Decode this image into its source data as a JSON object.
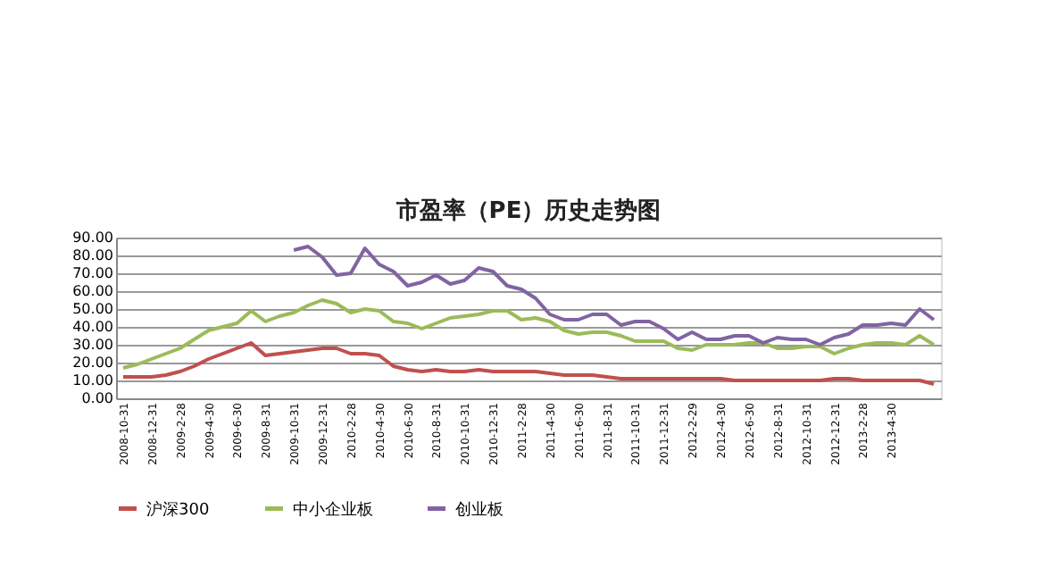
{
  "chart_data": {
    "type": "line",
    "title": "市盈率（PE）历史走势图",
    "categories": [
      "2008-10-31",
      null,
      "2008-12-31",
      null,
      "2009-2-28",
      null,
      "2009-4-30",
      null,
      "2009-6-30",
      null,
      "2009-8-31",
      null,
      "2009-10-31",
      null,
      "2009-12-31",
      null,
      "2010-2-28",
      null,
      "2010-4-30",
      null,
      "2010-6-30",
      null,
      "2010-8-31",
      null,
      "2010-10-31",
      null,
      "2010-12-31",
      null,
      "2011-2-28",
      null,
      "2011-4-30",
      null,
      "2011-6-30",
      null,
      "2011-8-31",
      null,
      "2011-10-31",
      null,
      "2011-12-31",
      null,
      "2012-2-29",
      null,
      "2012-4-30",
      null,
      "2012-6-30",
      null,
      "2012-8-31",
      null,
      "2012-10-31",
      null,
      "2012-12-31",
      null,
      "2013-2-28",
      null,
      "2013-4-30",
      null,
      null,
      null
    ],
    "series": [
      {
        "name": "沪深300",
        "color": "#c0504d",
        "values": [
          12,
          12,
          12,
          13,
          15,
          18,
          22,
          25,
          28,
          31,
          24,
          25,
          26,
          27,
          28,
          28,
          25,
          25,
          24,
          18,
          16,
          15,
          16,
          15,
          15,
          16,
          15,
          15,
          15,
          15,
          14,
          13,
          13,
          13,
          12,
          11,
          11,
          11,
          11,
          11,
          11,
          11,
          11,
          10,
          10,
          10,
          10,
          10,
          10,
          10,
          11,
          11,
          10,
          10,
          10,
          10,
          10,
          8
        ]
      },
      {
        "name": "中小企业板",
        "color": "#9bbb59",
        "values": [
          17,
          19,
          22,
          25,
          28,
          33,
          38,
          40,
          42,
          49,
          43,
          46,
          48,
          52,
          55,
          53,
          48,
          50,
          49,
          43,
          42,
          39,
          42,
          45,
          46,
          47,
          49,
          49,
          44,
          45,
          43,
          38,
          36,
          37,
          37,
          35,
          32,
          32,
          32,
          28,
          27,
          30,
          30,
          30,
          31,
          31,
          28,
          28,
          29,
          29,
          25,
          28,
          30,
          31,
          31,
          30,
          35,
          30
        ]
      },
      {
        "name": "创业板",
        "color": "#8064a2",
        "values": [
          null,
          null,
          null,
          null,
          null,
          null,
          null,
          null,
          null,
          null,
          null,
          null,
          83,
          85,
          79,
          69,
          70,
          84,
          75,
          71,
          63,
          65,
          69,
          64,
          66,
          73,
          71,
          63,
          61,
          56,
          47,
          44,
          44,
          47,
          47,
          41,
          43,
          43,
          39,
          33,
          37,
          33,
          33,
          35,
          35,
          31,
          34,
          33,
          33,
          30,
          34,
          36,
          41,
          41,
          42,
          41,
          50,
          44
        ]
      }
    ],
    "ylim": [
      0,
      90
    ],
    "yticks": [
      {
        "value": 0,
        "label": "0.00"
      },
      {
        "value": 10,
        "label": "10.00"
      },
      {
        "value": 20,
        "label": "20.00"
      },
      {
        "value": 30,
        "label": "30.00"
      },
      {
        "value": 40,
        "label": "40.00"
      },
      {
        "value": 50,
        "label": "50.00"
      },
      {
        "value": 60,
        "label": "60.00"
      },
      {
        "value": 70,
        "label": "70.00"
      },
      {
        "value": 80,
        "label": "80.00"
      },
      {
        "value": 90,
        "label": "90.00"
      }
    ],
    "grid": "y",
    "legend": "bottom",
    "marker": "none",
    "line_style": "solid"
  }
}
